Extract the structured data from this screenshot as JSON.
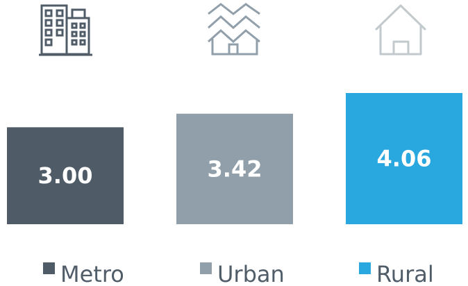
{
  "chart_data": {
    "type": "bar",
    "categories": [
      "Metro",
      "Urban",
      "Rural"
    ],
    "values": [
      3.0,
      3.42,
      4.06
    ],
    "value_labels": [
      "3.00",
      "3.42",
      "4.06"
    ],
    "colors": [
      "#4f5c67",
      "#919faa",
      "#29a8e0"
    ],
    "icons": [
      "city-buildings-icon",
      "suburban-houses-icon",
      "house-icon"
    ],
    "title": "",
    "xlabel": "",
    "ylabel": "",
    "grid": false,
    "legend": "bottom",
    "ylim": [
      0,
      4.06
    ]
  }
}
